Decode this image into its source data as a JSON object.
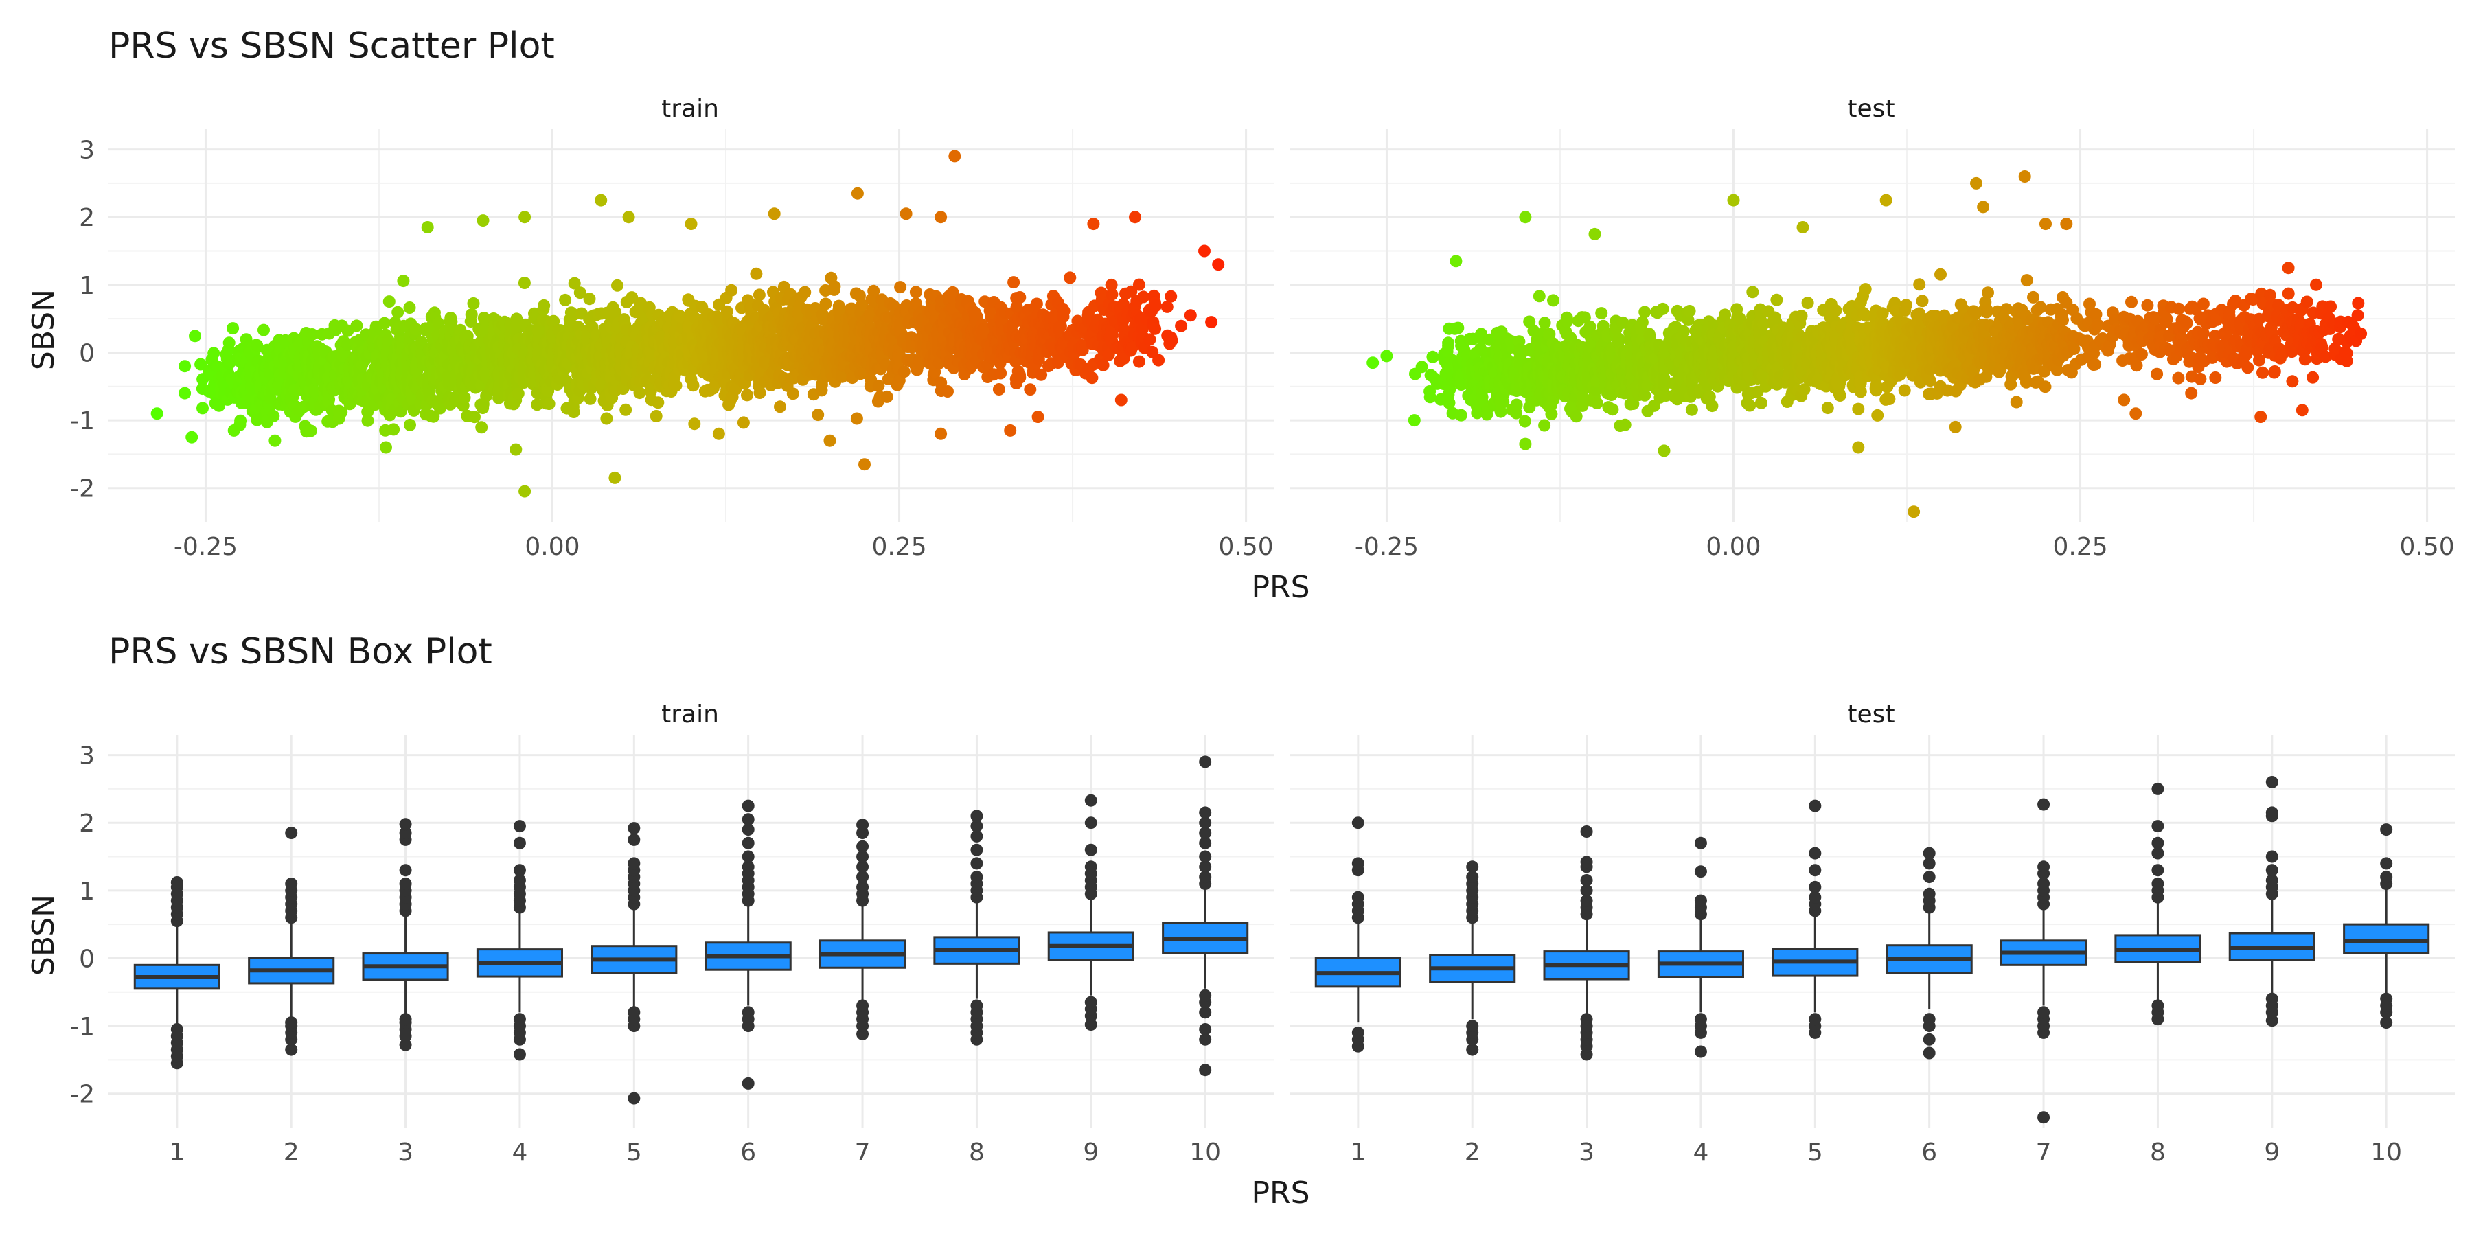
{
  "chart_data": [
    {
      "type": "scatter",
      "title": "PRS vs SBSN Scatter Plot",
      "xlabel": "PRS",
      "ylabel": "SBSN",
      "facets": [
        "train",
        "test"
      ],
      "xlim": [
        -0.32,
        0.52
      ],
      "ylim": [
        -2.5,
        3.3
      ],
      "xticks": [
        -0.25,
        0.0,
        0.25,
        0.5
      ],
      "xtick_labels": [
        "-0.25",
        "0.00",
        "0.25",
        "0.50"
      ],
      "yticks": [
        -2,
        -1,
        0,
        1,
        2,
        3
      ],
      "ytick_labels": [
        "-2",
        "-1",
        "0",
        "1",
        "2",
        "3"
      ],
      "grid": true,
      "color_gradient": {
        "low": "#55ff00",
        "mid": "#c4b000",
        "high": "#ff2000"
      },
      "series": [
        {
          "facet": "train",
          "cloud": [
            [
              -0.22,
              -0.4,
              0.06,
              0.3
            ],
            [
              -0.18,
              -0.33,
              0.07,
              0.32
            ],
            [
              -0.14,
              -0.27,
              0.08,
              0.33
            ],
            [
              -0.1,
              -0.21,
              0.08,
              0.34
            ],
            [
              -0.06,
              -0.16,
              0.08,
              0.34
            ],
            [
              -0.02,
              -0.1,
              0.08,
              0.34
            ],
            [
              0.02,
              -0.05,
              0.08,
              0.34
            ],
            [
              0.06,
              0.0,
              0.08,
              0.34
            ],
            [
              0.1,
              0.05,
              0.08,
              0.34
            ],
            [
              0.14,
              0.09,
              0.08,
              0.34
            ],
            [
              0.18,
              0.13,
              0.07,
              0.33
            ],
            [
              0.22,
              0.17,
              0.07,
              0.32
            ],
            [
              0.26,
              0.21,
              0.06,
              0.31
            ],
            [
              0.3,
              0.24,
              0.06,
              0.3
            ],
            [
              0.34,
              0.27,
              0.05,
              0.3
            ],
            [
              0.38,
              0.31,
              0.04,
              0.3
            ],
            [
              0.42,
              0.36,
              0.03,
              0.28
            ]
          ],
          "outliers": [
            [
              -0.285,
              -0.9
            ],
            [
              -0.26,
              -1.25
            ],
            [
              -0.265,
              -0.6
            ],
            [
              -0.265,
              -0.2
            ],
            [
              -0.02,
              -2.05
            ],
            [
              0.045,
              -1.85
            ],
            [
              0.225,
              -1.65
            ],
            [
              0.29,
              2.9
            ],
            [
              0.22,
              2.35
            ],
            [
              0.255,
              2.05
            ],
            [
              0.28,
              2.0
            ],
            [
              0.035,
              2.25
            ],
            [
              -0.02,
              2.0
            ],
            [
              -0.05,
              1.95
            ],
            [
              -0.09,
              1.85
            ],
            [
              0.055,
              2.0
            ],
            [
              0.16,
              2.05
            ],
            [
              0.1,
              1.9
            ],
            [
              0.48,
              1.3
            ],
            [
              0.47,
              1.5
            ],
            [
              0.475,
              0.45
            ],
            [
              0.46,
              0.55
            ],
            [
              0.35,
              -0.95
            ],
            [
              0.33,
              -1.15
            ],
            [
              0.28,
              -1.2
            ],
            [
              0.12,
              -1.2
            ],
            [
              -0.2,
              -1.3
            ],
            [
              -0.12,
              -1.4
            ],
            [
              0.2,
              -1.3
            ],
            [
              0.41,
              -0.7
            ],
            [
              0.42,
              2.0
            ],
            [
              0.39,
              1.9
            ]
          ]
        },
        {
          "facet": "test",
          "cloud": [
            [
              -0.19,
              -0.3,
              0.05,
              0.28
            ],
            [
              -0.15,
              -0.25,
              0.07,
              0.3
            ],
            [
              -0.11,
              -0.2,
              0.07,
              0.31
            ],
            [
              -0.07,
              -0.15,
              0.07,
              0.32
            ],
            [
              -0.03,
              -0.1,
              0.07,
              0.32
            ],
            [
              0.01,
              -0.06,
              0.07,
              0.32
            ],
            [
              0.05,
              -0.02,
              0.07,
              0.32
            ],
            [
              0.09,
              0.02,
              0.07,
              0.32
            ],
            [
              0.13,
              0.06,
              0.07,
              0.31
            ],
            [
              0.17,
              0.1,
              0.06,
              0.3
            ],
            [
              0.21,
              0.14,
              0.05,
              0.29
            ],
            [
              0.24,
              0.18,
              0.03,
              0.27
            ],
            [
              0.3,
              0.23,
              0.02,
              0.22
            ],
            [
              0.34,
              0.25,
              0.03,
              0.26
            ],
            [
              0.38,
              0.28,
              0.03,
              0.28
            ],
            [
              0.42,
              0.32,
              0.02,
              0.25
            ]
          ],
          "outliers": [
            [
              -0.26,
              -0.15
            ],
            [
              -0.25,
              -0.05
            ],
            [
              -0.2,
              1.35
            ],
            [
              -0.15,
              2.0
            ],
            [
              0.0,
              2.25
            ],
            [
              0.13,
              -2.35
            ],
            [
              0.21,
              2.6
            ],
            [
              0.175,
              2.5
            ],
            [
              0.18,
              2.15
            ],
            [
              0.11,
              2.25
            ],
            [
              0.225,
              1.9
            ],
            [
              0.24,
              1.9
            ],
            [
              0.45,
              0.55
            ],
            [
              0.43,
              0.35
            ],
            [
              0.42,
              1.0
            ],
            [
              0.4,
              1.25
            ],
            [
              0.41,
              -0.85
            ],
            [
              0.38,
              -0.95
            ],
            [
              0.29,
              -0.9
            ],
            [
              0.09,
              -1.4
            ],
            [
              -0.05,
              -1.45
            ],
            [
              -0.15,
              -1.35
            ],
            [
              -0.23,
              -1.0
            ],
            [
              0.05,
              1.85
            ],
            [
              -0.1,
              1.75
            ],
            [
              0.16,
              -1.1
            ],
            [
              0.33,
              -0.6
            ]
          ]
        }
      ]
    },
    {
      "type": "box",
      "title": "PRS vs SBSN Box Plot",
      "xlabel": "PRS",
      "ylabel": "SBSN",
      "facets": [
        "train",
        "test"
      ],
      "categories": [
        "1",
        "2",
        "3",
        "4",
        "5",
        "6",
        "7",
        "8",
        "9",
        "10"
      ],
      "ylim": [
        -2.5,
        3.3
      ],
      "yticks": [
        -2,
        -1,
        0,
        1,
        2,
        3
      ],
      "ytick_labels": [
        "-2",
        "-1",
        "0",
        "1",
        "2",
        "3"
      ],
      "grid": true,
      "box_color": "#1e90ff",
      "outlier_color": "#333333",
      "series": [
        {
          "facet": "train",
          "boxes": [
            {
              "lower_whisker": -1.0,
              "q1": -0.45,
              "median": -0.28,
              "q3": -0.1,
              "upper_whisker": 0.5,
              "outliers": [
                -1.55,
                -1.45,
                -1.35,
                -1.25,
                -1.15,
                -1.05,
                0.55,
                0.65,
                0.75,
                0.85,
                0.95,
                1.05,
                1.12
              ]
            },
            {
              "lower_whisker": -0.9,
              "q1": -0.37,
              "median": -0.18,
              "q3": 0.0,
              "upper_whisker": 0.55,
              "outliers": [
                -1.35,
                -1.2,
                -1.1,
                -1.0,
                -0.95,
                0.6,
                0.7,
                0.8,
                0.9,
                1.0,
                1.1,
                1.85
              ]
            },
            {
              "lower_whisker": -0.85,
              "q1": -0.32,
              "median": -0.12,
              "q3": 0.07,
              "upper_whisker": 0.65,
              "outliers": [
                -1.28,
                -1.15,
                -1.05,
                -0.95,
                -0.9,
                0.7,
                0.8,
                0.9,
                1.0,
                1.1,
                1.3,
                1.75,
                1.85,
                1.98
              ]
            },
            {
              "lower_whisker": -0.8,
              "q1": -0.27,
              "median": -0.07,
              "q3": 0.13,
              "upper_whisker": 0.7,
              "outliers": [
                -1.42,
                -1.2,
                -1.1,
                -1.0,
                -0.9,
                0.75,
                0.85,
                0.95,
                1.05,
                1.15,
                1.3,
                1.7,
                1.95
              ]
            },
            {
              "lower_whisker": -0.75,
              "q1": -0.22,
              "median": -0.02,
              "q3": 0.18,
              "upper_whisker": 0.75,
              "outliers": [
                -2.07,
                -1.0,
                -0.9,
                -0.8,
                0.8,
                0.9,
                1.0,
                1.1,
                1.2,
                1.3,
                1.4,
                1.75,
                1.92
              ]
            },
            {
              "lower_whisker": -0.7,
              "q1": -0.17,
              "median": 0.03,
              "q3": 0.23,
              "upper_whisker": 0.78,
              "outliers": [
                -1.85,
                -1.0,
                -0.9,
                -0.8,
                0.85,
                0.95,
                1.05,
                1.15,
                1.25,
                1.35,
                1.5,
                1.7,
                1.9,
                2.05,
                2.25
              ]
            },
            {
              "lower_whisker": -0.65,
              "q1": -0.14,
              "median": 0.06,
              "q3": 0.26,
              "upper_whisker": 0.8,
              "outliers": [
                -1.12,
                -1.0,
                -0.9,
                -0.8,
                -0.7,
                0.85,
                0.95,
                1.05,
                1.2,
                1.35,
                1.5,
                1.65,
                1.85,
                1.97
              ]
            },
            {
              "lower_whisker": -0.6,
              "q1": -0.08,
              "median": 0.12,
              "q3": 0.31,
              "upper_whisker": 0.85,
              "outliers": [
                -1.2,
                -1.1,
                -1.0,
                -0.9,
                -0.8,
                -0.7,
                0.9,
                1.0,
                1.1,
                1.2,
                1.4,
                1.6,
                1.8,
                1.95,
                2.1
              ]
            },
            {
              "lower_whisker": -0.55,
              "q1": -0.03,
              "median": 0.18,
              "q3": 0.38,
              "upper_whisker": 0.9,
              "outliers": [
                -0.98,
                -0.85,
                -0.75,
                -0.65,
                0.95,
                1.05,
                1.15,
                1.25,
                1.35,
                1.6,
                2.0,
                2.33
              ]
            },
            {
              "lower_whisker": -0.45,
              "q1": 0.08,
              "median": 0.28,
              "q3": 0.52,
              "upper_whisker": 1.05,
              "outliers": [
                -1.65,
                -1.2,
                -1.05,
                -0.8,
                -0.65,
                -0.55,
                1.1,
                1.2,
                1.35,
                1.5,
                1.7,
                1.85,
                2.0,
                2.15,
                2.9
              ]
            }
          ]
        },
        {
          "facet": "test",
          "boxes": [
            {
              "lower_whisker": -0.95,
              "q1": -0.42,
              "median": -0.22,
              "q3": 0.0,
              "upper_whisker": 0.55,
              "outliers": [
                -1.3,
                -1.2,
                -1.1,
                0.6,
                0.7,
                0.8,
                0.9,
                1.3,
                1.4,
                2.0
              ]
            },
            {
              "lower_whisker": -0.9,
              "q1": -0.35,
              "median": -0.15,
              "q3": 0.05,
              "upper_whisker": 0.55,
              "outliers": [
                -1.35,
                -1.2,
                -1.1,
                -1.0,
                0.6,
                0.7,
                0.8,
                0.9,
                1.0,
                1.1,
                1.2,
                1.35
              ]
            },
            {
              "lower_whisker": -0.85,
              "q1": -0.31,
              "median": -0.1,
              "q3": 0.1,
              "upper_whisker": 0.6,
              "outliers": [
                -1.42,
                -1.3,
                -1.2,
                -1.1,
                -1.0,
                -0.9,
                0.65,
                0.75,
                0.85,
                1.0,
                1.15,
                1.35,
                1.42,
                1.87
              ]
            },
            {
              "lower_whisker": -0.8,
              "q1": -0.28,
              "median": -0.08,
              "q3": 0.1,
              "upper_whisker": 0.6,
              "outliers": [
                -1.38,
                -1.1,
                -1.0,
                -0.9,
                0.65,
                0.75,
                0.85,
                1.28,
                1.7
              ]
            },
            {
              "lower_whisker": -0.8,
              "q1": -0.26,
              "median": -0.05,
              "q3": 0.14,
              "upper_whisker": 0.65,
              "outliers": [
                -1.1,
                -1.0,
                -0.9,
                0.7,
                0.8,
                0.9,
                1.05,
                1.3,
                1.55,
                2.25
              ]
            },
            {
              "lower_whisker": -0.75,
              "q1": -0.22,
              "median": -0.01,
              "q3": 0.19,
              "upper_whisker": 0.7,
              "outliers": [
                -1.4,
                -1.2,
                -1.0,
                -0.9,
                0.75,
                0.85,
                0.95,
                1.2,
                1.4,
                1.55
              ]
            },
            {
              "lower_whisker": -0.7,
              "q1": -0.1,
              "median": 0.08,
              "q3": 0.26,
              "upper_whisker": 0.75,
              "outliers": [
                -2.35,
                -1.1,
                -1.0,
                -0.9,
                -0.8,
                0.8,
                0.9,
                1.0,
                1.1,
                1.25,
                1.35,
                2.27
              ]
            },
            {
              "lower_whisker": -0.65,
              "q1": -0.06,
              "median": 0.12,
              "q3": 0.34,
              "upper_whisker": 0.85,
              "outliers": [
                -0.9,
                -0.8,
                -0.7,
                0.9,
                1.0,
                1.1,
                1.3,
                1.55,
                1.7,
                1.95,
                2.5
              ]
            },
            {
              "lower_whisker": -0.55,
              "q1": -0.03,
              "median": 0.15,
              "q3": 0.37,
              "upper_whisker": 0.9,
              "outliers": [
                -0.92,
                -0.8,
                -0.7,
                -0.6,
                0.95,
                1.05,
                1.15,
                1.3,
                1.5,
                2.1,
                2.15,
                2.6
              ]
            },
            {
              "lower_whisker": -0.55,
              "q1": 0.08,
              "median": 0.25,
              "q3": 0.5,
              "upper_whisker": 1.05,
              "outliers": [
                -0.95,
                -0.8,
                -0.7,
                -0.6,
                1.1,
                1.2,
                1.4,
                1.9
              ]
            }
          ]
        }
      ]
    }
  ]
}
